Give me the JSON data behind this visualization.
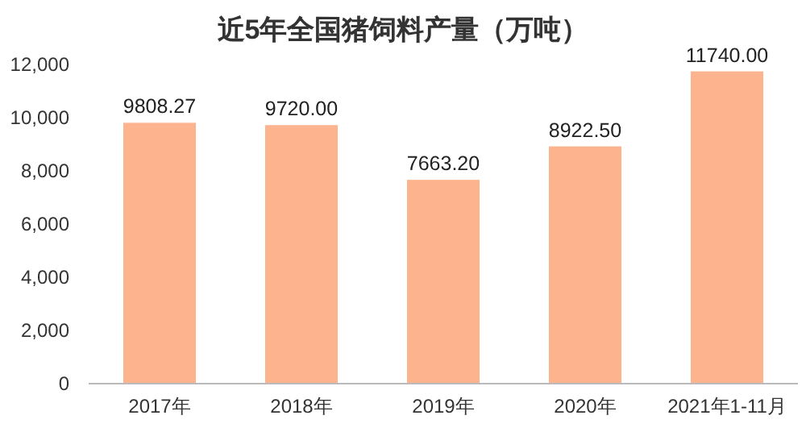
{
  "chart_data": {
    "type": "bar",
    "title": "近5年全国猪饲料产量（万吨）",
    "categories": [
      "2017年",
      "2018年",
      "2019年",
      "2020年",
      "2021年1-11月"
    ],
    "values": [
      9808.27,
      9720.0,
      7663.2,
      8922.5,
      11740.0
    ],
    "value_labels": [
      "9808.27",
      "9720.00",
      "7663.20",
      "8922.50",
      "11740.00"
    ],
    "color": "#fdb48e",
    "ylim": [
      0,
      12000
    ],
    "yticks": [
      {
        "value": 0,
        "label": "0"
      },
      {
        "value": 2000,
        "label": "2,000"
      },
      {
        "value": 4000,
        "label": "4,000"
      },
      {
        "value": 6000,
        "label": "6,000"
      },
      {
        "value": 8000,
        "label": "8,000"
      },
      {
        "value": 10000,
        "label": "10,000"
      },
      {
        "value": 12000,
        "label": "12,000"
      }
    ],
    "grid": false
  }
}
